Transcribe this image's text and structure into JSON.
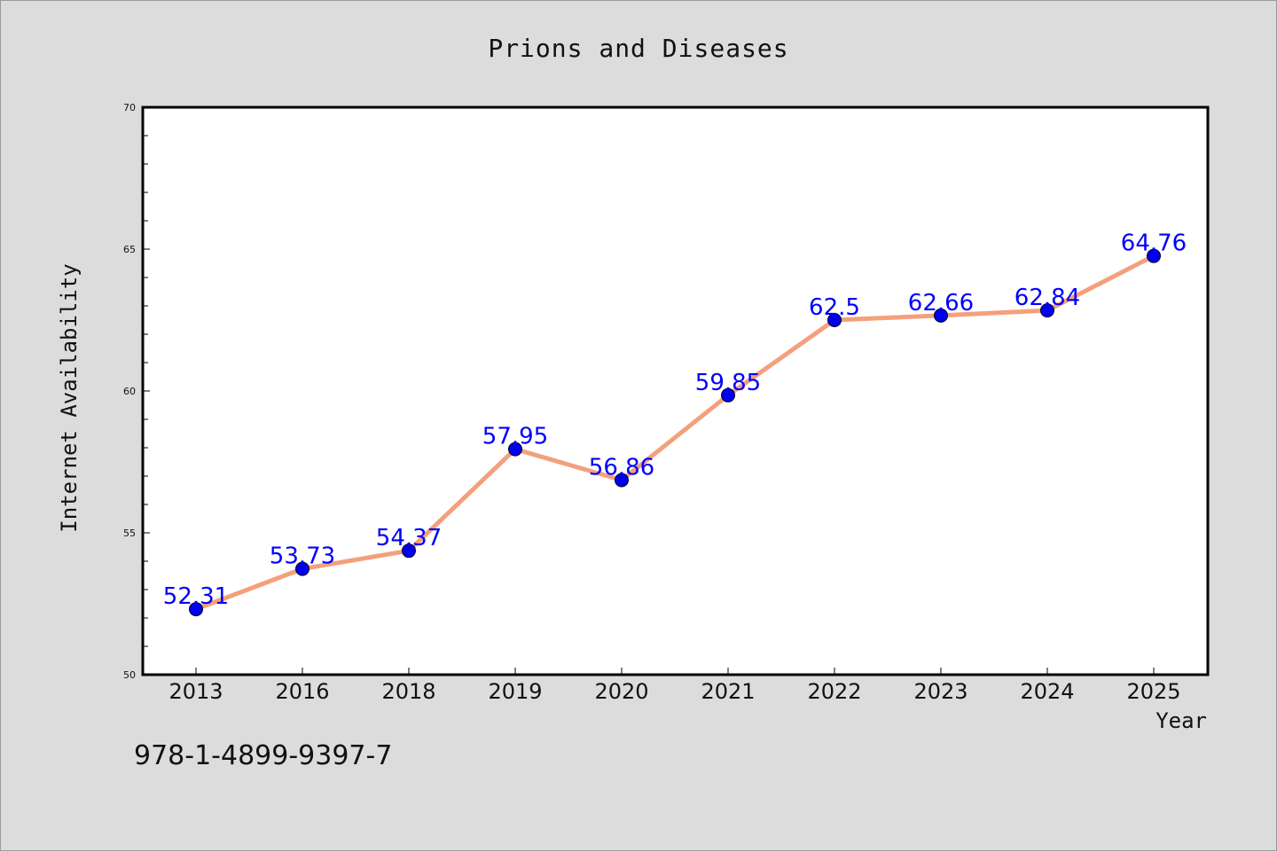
{
  "chart_data": {
    "type": "line",
    "title": "Prions and Diseases",
    "xlabel": "Year",
    "ylabel": "Internet Availability",
    "categories": [
      "2013",
      "2016",
      "2018",
      "2019",
      "2020",
      "2021",
      "2022",
      "2023",
      "2024",
      "2025"
    ],
    "series": [
      {
        "values": [
          52.31,
          53.73,
          54.37,
          57.95,
          56.86,
          59.85,
          62.5,
          62.66,
          62.84,
          64.76
        ],
        "data_labels": [
          "52.31",
          "53.73",
          "54.37",
          "57.95",
          "56.86",
          "59.85",
          "62.5",
          "62.66",
          "62.84",
          "64.76"
        ],
        "line_color": "#f4a07c",
        "marker_color": "#0000ee"
      }
    ],
    "ylim": [
      50,
      70
    ],
    "yticks": [
      "50",
      "55",
      "60",
      "65",
      "70"
    ],
    "grid": false,
    "label_color": "#0000ff"
  },
  "footer": {
    "isbn": "978-1-4899-9397-7"
  }
}
